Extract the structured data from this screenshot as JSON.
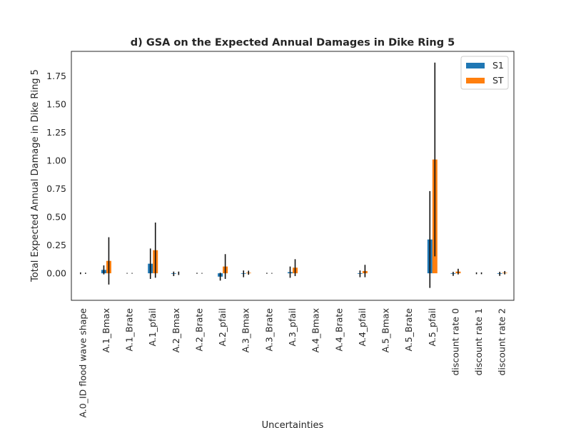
{
  "chart_data": {
    "type": "bar",
    "title": "d) GSA on the Expected Annual Damages in Dike Ring 5",
    "xlabel": "Uncertainties",
    "ylabel": "Total Expected Annual Damage in Dike Ring 5",
    "ylim": [
      -0.24,
      1.97
    ],
    "yticks": [
      0.0,
      0.25,
      0.5,
      0.75,
      1.0,
      1.25,
      1.5,
      1.75
    ],
    "ytick_labels": [
      "0.00",
      "0.25",
      "0.50",
      "0.75",
      "1.00",
      "1.25",
      "1.50",
      "1.75"
    ],
    "categories": [
      "A.0_ID flood wave shape",
      "A.1_Bmax",
      "A.1_Brate",
      "A.1_pfail",
      "A.2_Bmax",
      "A.2_Brate",
      "A.2_pfail",
      "A.3_Bmax",
      "A.3_Brate",
      "A.3_pfail",
      "A.4_Bmax",
      "A.4_Brate",
      "A.4_pfail",
      "A.5_Bmax",
      "A.5_Brate",
      "A.5_pfail",
      "discount rate 0",
      "discount rate 1",
      "discount rate 2"
    ],
    "series": [
      {
        "name": "S1",
        "color": "#1f77b4",
        "values": [
          0.0,
          0.03,
          0.0,
          0.085,
          -0.005,
          0.0,
          -0.03,
          -0.005,
          0.0,
          0.01,
          0.0,
          0.0,
          -0.005,
          0.0,
          0.0,
          0.3,
          -0.005,
          0.0,
          -0.005
        ],
        "errors": [
          0.008,
          0.04,
          0.003,
          0.135,
          0.02,
          0.004,
          0.035,
          0.03,
          0.004,
          0.05,
          0.0,
          0.0,
          0.03,
          0.0,
          0.0,
          0.43,
          0.018,
          0.008,
          0.018
        ]
      },
      {
        "name": "ST",
        "color": "#ff7f0e",
        "values": [
          0.0,
          0.11,
          0.0,
          0.205,
          0.0,
          0.0,
          0.06,
          0.005,
          0.0,
          0.05,
          0.0,
          0.0,
          0.02,
          0.0,
          0.0,
          1.01,
          0.015,
          0.0,
          0.005
        ],
        "errors": [
          0.005,
          0.21,
          0.003,
          0.245,
          0.015,
          0.003,
          0.11,
          0.018,
          0.003,
          0.075,
          0.0,
          0.0,
          0.055,
          0.0,
          0.0,
          0.86,
          0.025,
          0.008,
          0.015
        ]
      }
    ],
    "legend_position": "top-right",
    "grid": false
  }
}
